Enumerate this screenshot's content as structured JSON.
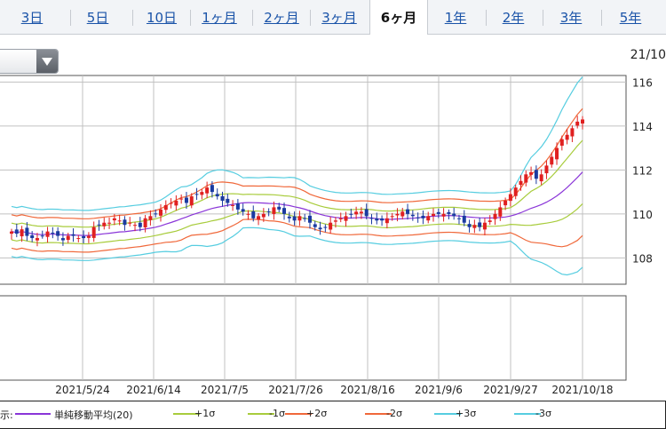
{
  "tabs": [
    {
      "label": "3日",
      "active": false
    },
    {
      "label": "5日",
      "active": false
    },
    {
      "label": "10日",
      "active": false
    },
    {
      "label": "1ヶ月",
      "active": false
    },
    {
      "label": "2ヶ月",
      "active": false
    },
    {
      "label": "3ヶ月",
      "active": false
    },
    {
      "label": "6ヶ月",
      "active": true
    },
    {
      "label": "1年",
      "active": false
    },
    {
      "label": "2年",
      "active": false
    },
    {
      "label": "3年",
      "active": false
    },
    {
      "label": "5年",
      "active": false
    }
  ],
  "date_stamp": "21/10",
  "dropdown": {
    "value": "",
    "icon": "triangle-down-icon"
  },
  "chart_data": {
    "type": "candlestick",
    "y_ticks": [
      116,
      114,
      112,
      110,
      108
    ],
    "ylim": [
      106.8,
      116.3
    ],
    "x_labels": [
      "2021/5/24",
      "2021/6/14",
      "2021/7/5",
      "2021/7/26",
      "2021/8/16",
      "2021/9/6",
      "2021/9/27",
      "2021/10/18"
    ],
    "grid": true,
    "closes": [
      109.2,
      109.1,
      109.3,
      109.0,
      108.9,
      108.9,
      109.0,
      109.2,
      109.1,
      109.0,
      108.8,
      109.0,
      109.0,
      108.9,
      108.9,
      109.0,
      109.4,
      109.5,
      109.6,
      109.6,
      109.8,
      109.7,
      109.5,
      109.6,
      109.5,
      109.4,
      109.8,
      109.9,
      110.0,
      110.2,
      110.4,
      110.5,
      110.6,
      110.7,
      110.5,
      110.8,
      110.9,
      111.0,
      111.2,
      111.0,
      110.8,
      110.6,
      110.5,
      110.4,
      110.2,
      110.1,
      110.0,
      109.8,
      109.9,
      110.0,
      110.1,
      110.3,
      110.2,
      110.0,
      109.8,
      109.7,
      109.9,
      109.8,
      109.6,
      109.4,
      109.3,
      109.4,
      109.6,
      109.7,
      109.8,
      109.9,
      110.0,
      110.1,
      110.1,
      109.9,
      109.8,
      109.7,
      109.7,
      109.8,
      109.9,
      110.0,
      110.1,
      110.0,
      109.9,
      109.8,
      109.8,
      109.9,
      110.0,
      110.0,
      110.0,
      110.0,
      109.9,
      109.8,
      109.6,
      109.4,
      109.5,
      109.4,
      109.6,
      109.7,
      110.0,
      110.3,
      110.6,
      110.9,
      111.2,
      111.5,
      111.8,
      111.9,
      111.6,
      111.8,
      112.2,
      112.6,
      113.0,
      113.4,
      113.6,
      113.9,
      114.2,
      114.3
    ],
    "last_close": 114.3,
    "legend": [
      {
        "label": "単純移動平均(20)",
        "color": "#8a35d8"
      },
      {
        "label": "+1σ",
        "color": "#a8cc3c"
      },
      {
        "label": "-1σ",
        "color": "#a8cc3c"
      },
      {
        "label": "+2σ",
        "color": "#f0683a"
      },
      {
        "label": "-2σ",
        "color": "#f0683a"
      },
      {
        "label": "+3σ",
        "color": "#56cde0"
      },
      {
        "label": "-3σ",
        "color": "#56cde0"
      }
    ],
    "legend_prefix": "表示:",
    "bands_last": {
      "ma": 111.8,
      "p1": 113.2,
      "m1": 110.4,
      "p2": 114.6,
      "m2": 109.0,
      "p3": 116.0,
      "m3": 107.5
    },
    "up_color": "#e02020",
    "down_color": "#1a3aa0"
  }
}
